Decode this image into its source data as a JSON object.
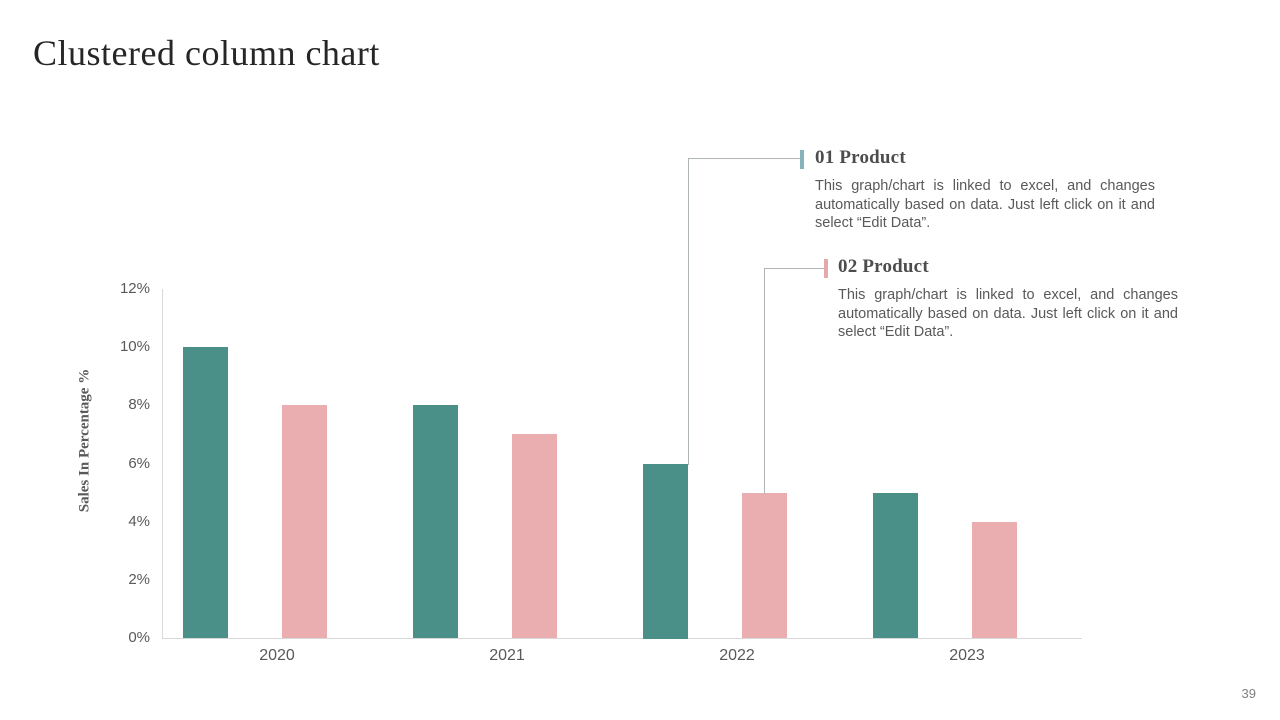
{
  "slide": {
    "title": "Clustered column chart",
    "page_number": "39"
  },
  "annotations": [
    {
      "heading": "01 Product",
      "body": "This graph/chart is linked to excel, and changes automatically based on data. Just left click on it and select “Edit Data”.",
      "accent_color": "#87b4ba"
    },
    {
      "heading": "02 Product",
      "body": "This graph/chart is linked to excel, and changes automatically based on data. Just left click on it and select “Edit Data”.",
      "accent_color": "#e5a8ab"
    }
  ],
  "chart_data": {
    "type": "bar",
    "title": "",
    "categories": [
      "2020",
      "2021",
      "2022",
      "2023"
    ],
    "series": [
      {
        "name": "01 Product",
        "color": "#4a9088",
        "values": [
          10,
          8,
          6,
          5
        ]
      },
      {
        "name": "02 Product",
        "color": "#eaaeb0",
        "values": [
          8,
          7,
          5,
          4
        ]
      }
    ],
    "ylabel": "Sales In Percentage %",
    "xlabel": "",
    "y_ticks": [
      "0%",
      "2%",
      "4%",
      "6%",
      "8%",
      "10%",
      "12%"
    ],
    "ylim": [
      0,
      12
    ],
    "unit": "%",
    "grid": false,
    "legend": "none"
  }
}
